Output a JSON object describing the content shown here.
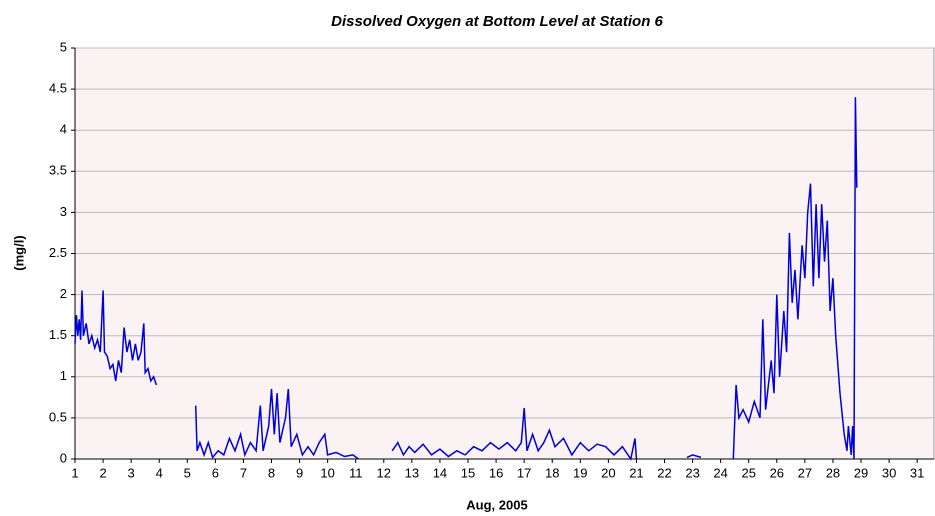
{
  "chart_data": {
    "type": "line",
    "title": "Dissolved Oxygen at Bottom Level at Station 6",
    "xlabel": "Aug, 2005",
    "ylabel": "(mg/l)",
    "xlim": [
      1,
      31.6
    ],
    "ylim": [
      0,
      5
    ],
    "xticks": [
      1,
      2,
      3,
      4,
      5,
      6,
      7,
      8,
      9,
      10,
      11,
      12,
      13,
      14,
      15,
      16,
      17,
      18,
      19,
      20,
      21,
      22,
      23,
      24,
      25,
      26,
      27,
      28,
      29,
      30,
      31
    ],
    "yticks": [
      0,
      0.5,
      1,
      1.5,
      2,
      2.5,
      3,
      3.5,
      4,
      4.5,
      5
    ],
    "grid": true,
    "series": [
      {
        "color": "#0000dd",
        "x": [
          1.0,
          1.05,
          1.1,
          1.15,
          1.2,
          1.25,
          1.3,
          1.4,
          1.5,
          1.6,
          1.7,
          1.8,
          1.9,
          2.0,
          2.05,
          2.15,
          2.25,
          2.35,
          2.45,
          2.55,
          2.65,
          2.75,
          2.85,
          2.95,
          3.05,
          3.15,
          3.25,
          3.35,
          3.45,
          3.5,
          3.6,
          3.7,
          3.8,
          3.9,
          4.5,
          5.3,
          5.35,
          5.45,
          5.6,
          5.75,
          5.9,
          6.1,
          6.3,
          6.5,
          6.7,
          6.9,
          7.05,
          7.25,
          7.45,
          7.6,
          7.7,
          7.9,
          8.0,
          8.1,
          8.2,
          8.3,
          8.5,
          8.6,
          8.7,
          8.9,
          9.1,
          9.3,
          9.5,
          9.7,
          9.9,
          10.0,
          10.3,
          10.6,
          10.9,
          11.1,
          11.5,
          12.3,
          12.5,
          12.7,
          12.9,
          13.1,
          13.4,
          13.7,
          14.0,
          14.3,
          14.6,
          14.9,
          15.2,
          15.5,
          15.8,
          16.1,
          16.4,
          16.7,
          16.9,
          17.0,
          17.1,
          17.3,
          17.5,
          17.7,
          17.9,
          18.1,
          18.4,
          18.7,
          19.0,
          19.3,
          19.6,
          19.9,
          20.2,
          20.5,
          20.8,
          20.95,
          21.0,
          22.0,
          22.8,
          23.0,
          23.3,
          24.0,
          24.45,
          24.55,
          24.65,
          24.8,
          25.0,
          25.2,
          25.4,
          25.5,
          25.6,
          25.8,
          25.9,
          26.0,
          26.1,
          26.25,
          26.35,
          26.45,
          26.55,
          26.65,
          26.75,
          26.9,
          27.0,
          27.1,
          27.2,
          27.3,
          27.4,
          27.5,
          27.6,
          27.7,
          27.8,
          27.9,
          28.0,
          28.1,
          28.25,
          28.4,
          28.5,
          28.55,
          28.65,
          28.7,
          28.75,
          28.8,
          28.85
        ],
        "values": [
          1.4,
          1.75,
          1.5,
          1.7,
          1.45,
          2.05,
          1.5,
          1.65,
          1.4,
          1.5,
          1.35,
          1.45,
          1.3,
          2.05,
          1.3,
          1.25,
          1.1,
          1.15,
          0.95,
          1.2,
          1.05,
          1.6,
          1.3,
          1.45,
          1.2,
          1.4,
          1.2,
          1.3,
          1.65,
          1.05,
          1.1,
          0.95,
          1.0,
          0.9,
          null,
          0.65,
          0.1,
          0.2,
          0.05,
          0.2,
          0.02,
          0.1,
          0.05,
          0.25,
          0.1,
          0.3,
          0.05,
          0.2,
          0.1,
          0.65,
          0.1,
          0.4,
          0.85,
          0.3,
          0.8,
          0.2,
          0.5,
          0.85,
          0.15,
          0.3,
          0.05,
          0.15,
          0.05,
          0.2,
          0.3,
          0.05,
          0.08,
          0.03,
          0.05,
          0,
          null,
          0.1,
          0.2,
          0.05,
          0.15,
          0.08,
          0.18,
          0.05,
          0.12,
          0.03,
          0.1,
          0.05,
          0.15,
          0.1,
          0.2,
          0.12,
          0.2,
          0.1,
          0.2,
          0.62,
          0.1,
          0.3,
          0.1,
          0.2,
          0.35,
          0.15,
          0.25,
          0.05,
          0.2,
          0.1,
          0.18,
          0.15,
          0.05,
          0.15,
          0,
          0.25,
          0,
          null,
          0.02,
          0.05,
          0.02,
          null,
          0,
          0.9,
          0.5,
          0.6,
          0.45,
          0.7,
          0.5,
          1.7,
          0.6,
          1.2,
          0.8,
          2.0,
          1.0,
          1.8,
          1.3,
          2.75,
          1.9,
          2.3,
          1.7,
          2.6,
          2.2,
          3.0,
          3.35,
          2.1,
          3.1,
          2.2,
          3.1,
          2.4,
          2.9,
          1.8,
          2.2,
          1.5,
          0.8,
          0.3,
          0.1,
          0.4,
          0.05,
          0.4,
          0,
          4.4,
          3.3
        ]
      }
    ]
  }
}
